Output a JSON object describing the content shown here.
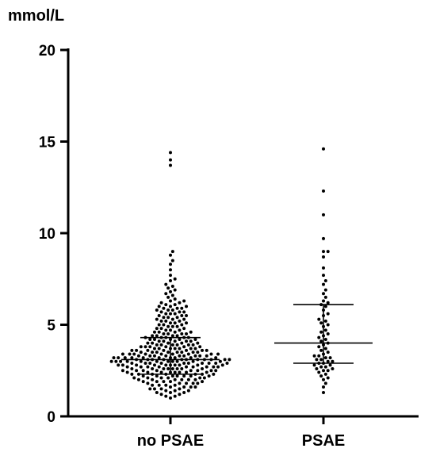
{
  "chart_data": {
    "type": "scatter",
    "subtype": "dot-plot",
    "title": "",
    "ylabel": "mmol/L",
    "xlabel": "",
    "ylim": [
      0,
      20
    ],
    "yticks": [
      0,
      5,
      10,
      15,
      20
    ],
    "ytick_labels": [
      "0",
      "5",
      "10",
      "15",
      "20"
    ],
    "categories": [
      "no PSAE",
      "PSAE"
    ],
    "grid": false,
    "legend": "none",
    "point_color": "#000000",
    "series": [
      {
        "name": "no PSAE",
        "summary": {
          "median": 3.1,
          "q1": 2.3,
          "q3": 4.3
        },
        "values": [
          1.0,
          1.1,
          1.1,
          1.2,
          1.2,
          1.3,
          1.3,
          1.3,
          1.4,
          1.4,
          1.4,
          1.5,
          1.5,
          1.5,
          1.5,
          1.6,
          1.6,
          1.6,
          1.6,
          1.7,
          1.7,
          1.7,
          1.7,
          1.8,
          1.8,
          1.8,
          1.8,
          1.8,
          1.9,
          1.9,
          1.9,
          1.9,
          1.9,
          2.0,
          2.0,
          2.0,
          2.0,
          2.0,
          2.0,
          2.1,
          2.1,
          2.1,
          2.1,
          2.1,
          2.1,
          2.2,
          2.2,
          2.2,
          2.2,
          2.2,
          2.2,
          2.2,
          2.3,
          2.3,
          2.3,
          2.3,
          2.3,
          2.3,
          2.3,
          2.4,
          2.4,
          2.4,
          2.4,
          2.4,
          2.4,
          2.4,
          2.4,
          2.5,
          2.5,
          2.5,
          2.5,
          2.5,
          2.5,
          2.5,
          2.5,
          2.6,
          2.6,
          2.6,
          2.6,
          2.6,
          2.6,
          2.6,
          2.6,
          2.7,
          2.7,
          2.7,
          2.7,
          2.7,
          2.7,
          2.7,
          2.7,
          2.7,
          2.8,
          2.8,
          2.8,
          2.8,
          2.8,
          2.8,
          2.8,
          2.8,
          2.8,
          2.8,
          2.9,
          2.9,
          2.9,
          2.9,
          2.9,
          2.9,
          2.9,
          2.9,
          2.9,
          2.9,
          3.0,
          3.0,
          3.0,
          3.0,
          3.0,
          3.0,
          3.0,
          3.0,
          3.0,
          3.0,
          3.0,
          3.1,
          3.1,
          3.1,
          3.1,
          3.1,
          3.1,
          3.1,
          3.1,
          3.1,
          3.1,
          3.1,
          3.2,
          3.2,
          3.2,
          3.2,
          3.2,
          3.2,
          3.2,
          3.2,
          3.2,
          3.2,
          3.3,
          3.3,
          3.3,
          3.3,
          3.3,
          3.3,
          3.3,
          3.3,
          3.3,
          3.4,
          3.4,
          3.4,
          3.4,
          3.4,
          3.4,
          3.4,
          3.4,
          3.4,
          3.5,
          3.5,
          3.5,
          3.5,
          3.5,
          3.5,
          3.5,
          3.5,
          3.6,
          3.6,
          3.6,
          3.6,
          3.6,
          3.6,
          3.6,
          3.7,
          3.7,
          3.7,
          3.7,
          3.7,
          3.7,
          3.7,
          3.8,
          3.8,
          3.8,
          3.8,
          3.8,
          3.8,
          3.9,
          3.9,
          3.9,
          3.9,
          3.9,
          3.9,
          4.0,
          4.0,
          4.0,
          4.0,
          4.0,
          4.1,
          4.1,
          4.1,
          4.1,
          4.1,
          4.2,
          4.2,
          4.2,
          4.2,
          4.2,
          4.3,
          4.3,
          4.3,
          4.3,
          4.3,
          4.4,
          4.4,
          4.4,
          4.4,
          4.5,
          4.5,
          4.5,
          4.5,
          4.6,
          4.6,
          4.6,
          4.6,
          4.7,
          4.7,
          4.7,
          4.8,
          4.8,
          4.8,
          4.9,
          4.9,
          4.9,
          5.0,
          5.0,
          5.0,
          5.1,
          5.1,
          5.1,
          5.2,
          5.2,
          5.2,
          5.3,
          5.3,
          5.3,
          5.4,
          5.4,
          5.4,
          5.5,
          5.5,
          5.5,
          5.6,
          5.6,
          5.6,
          5.7,
          5.7,
          5.7,
          5.8,
          5.8,
          5.8,
          5.9,
          5.9,
          5.9,
          6.0,
          6.0,
          6.0,
          6.1,
          6.1,
          6.2,
          6.2,
          6.3,
          6.3,
          6.4,
          6.5,
          6.6,
          6.7,
          6.8,
          6.9,
          7.0,
          7.1,
          7.2,
          7.4,
          7.5,
          7.7,
          8.0,
          8.3,
          8.5,
          8.8,
          9.0,
          13.7,
          14.0,
          14.4
        ]
      },
      {
        "name": "PSAE",
        "summary": {
          "median": 4.0,
          "q1": 2.9,
          "q3": 6.1
        },
        "values": [
          1.3,
          1.6,
          1.8,
          2.0,
          2.1,
          2.2,
          2.3,
          2.4,
          2.5,
          2.5,
          2.6,
          2.6,
          2.7,
          2.7,
          2.8,
          2.8,
          2.9,
          2.9,
          3.0,
          3.0,
          3.1,
          3.1,
          3.2,
          3.2,
          3.3,
          3.3,
          3.4,
          3.5,
          3.6,
          3.7,
          3.8,
          3.9,
          4.0,
          4.1,
          4.2,
          4.3,
          4.4,
          4.5,
          4.6,
          4.7,
          4.9,
          5.0,
          5.1,
          5.2,
          5.3,
          5.5,
          5.6,
          5.8,
          6.0,
          6.1,
          6.2,
          6.3,
          6.5,
          6.7,
          6.9,
          7.2,
          7.4,
          7.7,
          8.1,
          8.7,
          9.0,
          9.0,
          9.7,
          11.0,
          12.3,
          14.6
        ]
      }
    ]
  }
}
